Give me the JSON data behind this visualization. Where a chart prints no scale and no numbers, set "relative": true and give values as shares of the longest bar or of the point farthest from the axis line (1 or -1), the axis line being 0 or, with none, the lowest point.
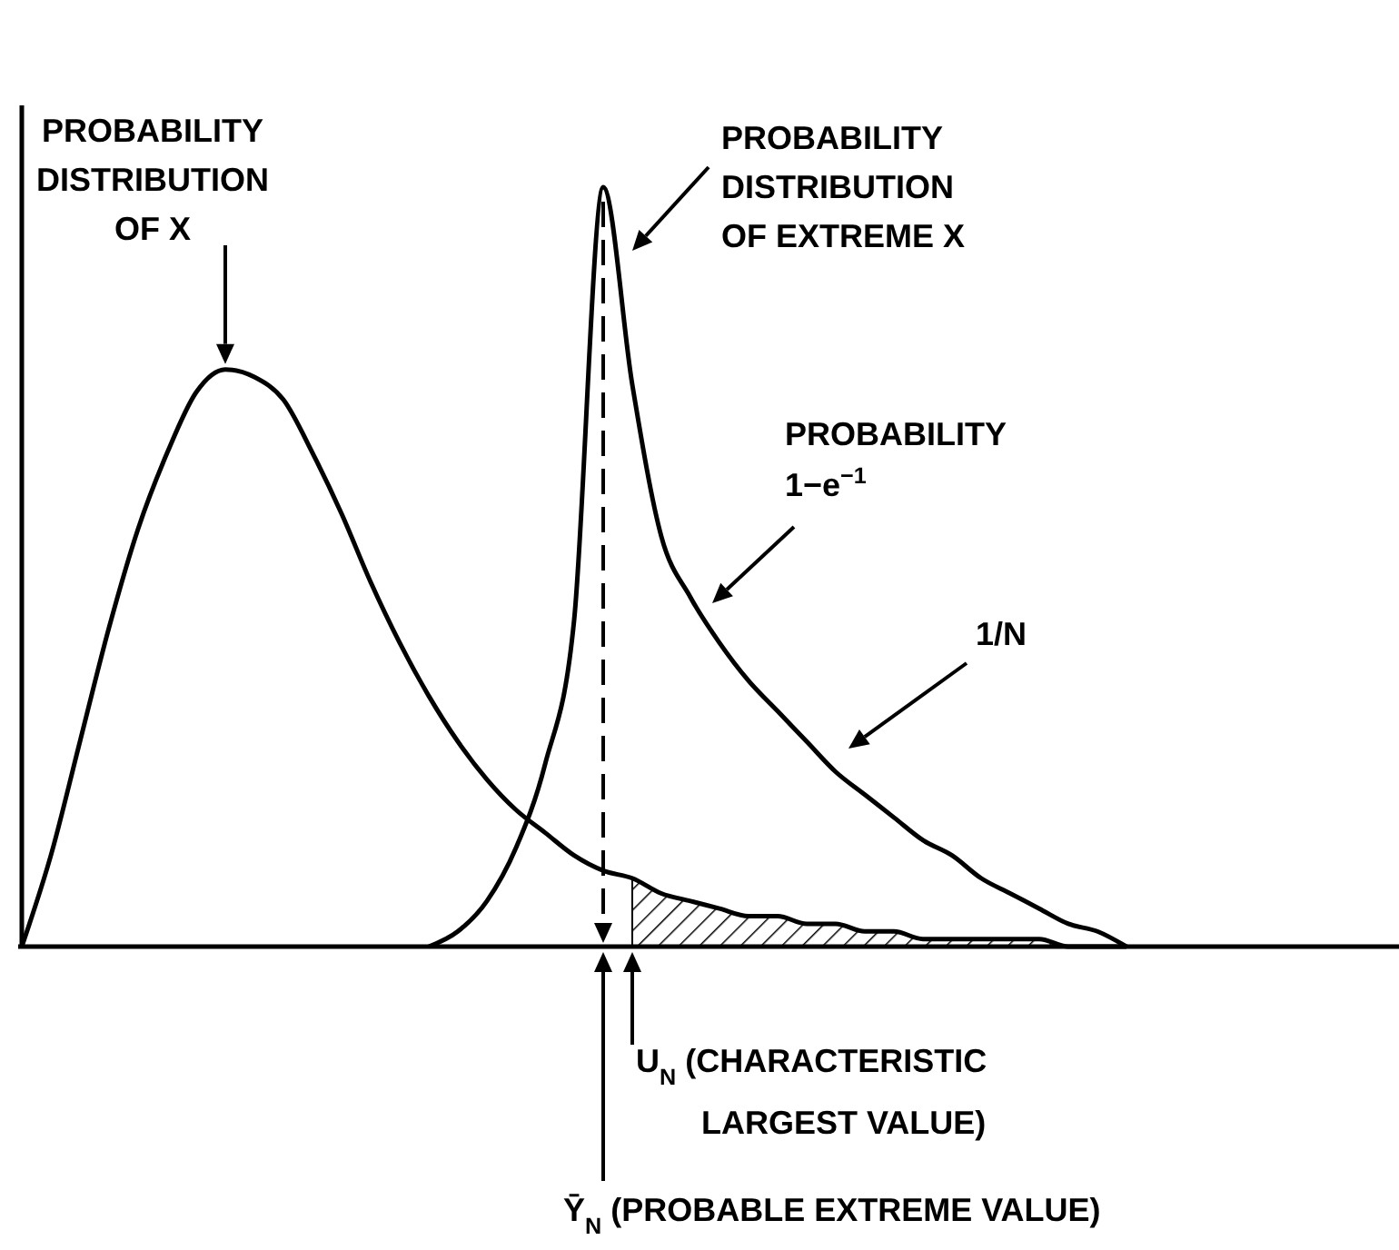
{
  "chart_data": {
    "type": "line",
    "relative": true,
    "grid": false,
    "marker": "none",
    "line_style": "solid",
    "categories": [
      null,
      null,
      null,
      null,
      null,
      null,
      null,
      null,
      null,
      null,
      null,
      null,
      null,
      null,
      null,
      null,
      null,
      null,
      null,
      null,
      null,
      null,
      null,
      null,
      null,
      null,
      null,
      null,
      null,
      null,
      null,
      null,
      null,
      null,
      null,
      null,
      null,
      null,
      null,
      null,
      null,
      null,
      null,
      null,
      null,
      null,
      null,
      null
    ],
    "series": [
      {
        "color": "#000000",
        "values": [
          0,
          0.12,
          0.27,
          0.42,
          0.55,
          0.65,
          0.73,
          0.76,
          0.75,
          0.72,
          0.65,
          0.57,
          0.48,
          0.4,
          0.33,
          0.27,
          0.22,
          0.18,
          0.15,
          0.12,
          0.1,
          0.09,
          0.07,
          0.06,
          0.05,
          0.04,
          0.04,
          0.03,
          0.03,
          0.02,
          0.02,
          0.01,
          0.01,
          0.01,
          0.01,
          0.01,
          0,
          0,
          0,
          null,
          null,
          null,
          null,
          null,
          null,
          null,
          null,
          null
        ]
      },
      {
        "color": "#000000",
        "values": [
          null,
          null,
          null,
          null,
          null,
          null,
          null,
          null,
          null,
          null,
          null,
          null,
          null,
          null,
          0,
          0.02,
          0.06,
          0.13,
          0.24,
          0.43,
          1,
          0.74,
          0.54,
          0.46,
          0.4,
          0.35,
          0.31,
          0.27,
          0.23,
          0.2,
          0.17,
          0.14,
          0.12,
          0.09,
          0.07,
          0.05,
          0.03,
          0.02,
          0,
          null,
          null,
          null,
          null,
          null,
          null,
          null,
          null,
          null
        ]
      },
      {
        "type": "area",
        "color": "#000000",
        "values": [
          null,
          null,
          null,
          null,
          null,
          null,
          null,
          null,
          null,
          null,
          null,
          null,
          null,
          null,
          null,
          null,
          null,
          null,
          null,
          null,
          null,
          0.09,
          0.07,
          0.06,
          0.05,
          0.04,
          0.04,
          0.03,
          0.03,
          0.02,
          0.02,
          0.01,
          0.01,
          0.01,
          0.01,
          0.01,
          0,
          0,
          0,
          null,
          null,
          null,
          null,
          null,
          null,
          null,
          null,
          null
        ]
      }
    ],
    "annotations": [
      "PROBABILITY\nDISTRIBUTION\nOF X",
      "PROBABILITY\nDISTRIBUTION\nOF EXTREME X",
      "PROBABILITY\n1−e$^{−1}$",
      "1/N",
      "U$_{N}$ (CHARACTERISTIC\nLARGEST VALUE)",
      "Ȳ$_{N}$ (PROBABLE EXTREME VALUE)"
    ]
  }
}
